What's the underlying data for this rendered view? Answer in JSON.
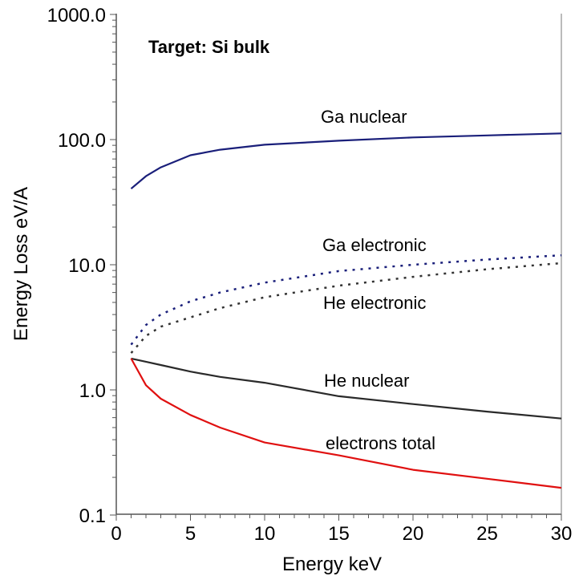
{
  "chart_data": {
    "type": "line",
    "title": "Target: Si bulk",
    "xlabel": "Energy keV",
    "ylabel": "Energy Loss eV/A",
    "xlim": [
      0,
      30
    ],
    "ylim": [
      0.1,
      1000
    ],
    "yscale": "log",
    "grid": false,
    "xticks": [
      "0",
      "5",
      "10",
      "15",
      "20",
      "25",
      "30"
    ],
    "yticks": [
      "0.1",
      "1.0",
      "10.0",
      "100.0",
      "1000.0"
    ],
    "x": [
      1,
      2,
      3,
      5,
      7,
      10,
      15,
      20,
      25,
      30
    ],
    "series": [
      {
        "name": "Ga nuclear",
        "color": "#1a1f7a",
        "style": "solid",
        "values": [
          40.5,
          51,
          60,
          75,
          83,
          91,
          98,
          104,
          108,
          112
        ]
      },
      {
        "name": "Ga electronic",
        "color": "#1a1f7a",
        "style": "dotted",
        "values": [
          2.3,
          3.3,
          4.0,
          5.1,
          6.0,
          7.2,
          8.9,
          10.0,
          11.0,
          11.9
        ]
      },
      {
        "name": "He electronic",
        "color": "#333333",
        "style": "dotted",
        "values": [
          1.97,
          2.7,
          3.2,
          3.8,
          4.5,
          5.5,
          6.8,
          8.0,
          9.2,
          10.3
        ]
      },
      {
        "name": "He nuclear",
        "color": "#2a2a2a",
        "style": "solid",
        "values": [
          1.78,
          1.68,
          1.58,
          1.4,
          1.27,
          1.14,
          0.89,
          0.77,
          0.67,
          0.59
        ]
      },
      {
        "name": "electrons total",
        "color": "#e01010",
        "style": "solid",
        "values": [
          1.78,
          1.09,
          0.85,
          0.63,
          0.5,
          0.38,
          0.3,
          0.23,
          0.195,
          0.165
        ]
      }
    ]
  }
}
